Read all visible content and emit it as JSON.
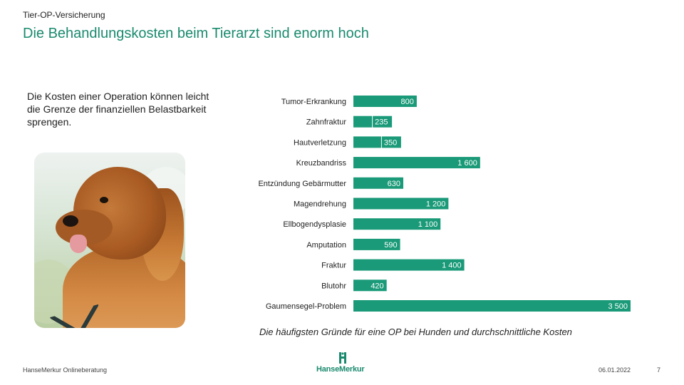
{
  "slide": {
    "kicker": "Tier-OP-Versicherung",
    "title": "Die Behandlungskosten beim Tierarzt sind enorm hoch",
    "intro": "Die Kosten einer Operation können leicht die Grenze der finanziellen Belastbarkeit sprengen.",
    "caption": "Die häufigsten Gründe für eine OP bei Hunden und durchschnittliche Kosten"
  },
  "footer": {
    "left": "HanseMerkur Onlineberatung",
    "logo_text": "HanseMerkur",
    "date": "06.01.2022",
    "page": "7"
  },
  "colors": {
    "accent": "#1a8a6e",
    "bar": "#1a9a78"
  },
  "chart_data": {
    "type": "bar",
    "orientation": "horizontal",
    "title": "Die häufigsten Gründe für eine OP bei Hunden und durchschnittliche Kosten",
    "categories": [
      "Tumor-Erkrankung",
      "Zahnfraktur",
      "Hautverletzung",
      "Kreuzbandriss",
      "Entzündung Gebärmutter",
      "Magendrehung",
      "Ellbogendysplasie",
      "Amputation",
      "Fraktur",
      "Blutohr",
      "Gaumensegel-Problem"
    ],
    "values": [
      800,
      235,
      350,
      1600,
      630,
      1200,
      1100,
      590,
      1400,
      420,
      3500
    ],
    "value_labels": [
      "800",
      "235",
      "350",
      "1 600",
      "630",
      "1 200",
      "1 100",
      "590",
      "1 400",
      "420",
      "3 500"
    ],
    "xlim": [
      0,
      3500
    ],
    "grid": false,
    "legend": "none"
  }
}
